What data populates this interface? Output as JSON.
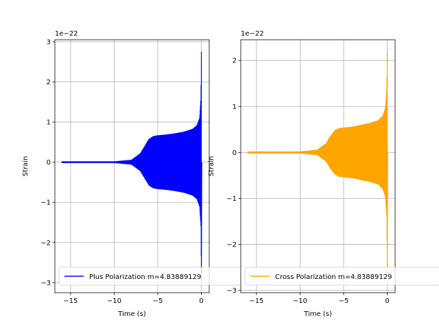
{
  "chart_data": [
    {
      "type": "line",
      "title": "",
      "xlabel": "Time (s)",
      "ylabel": "Strain",
      "offset_text": "1e−22",
      "xlim": [
        -16.8,
        0.9
      ],
      "ylim": [
        -3.25,
        3.05
      ],
      "xticks": [
        -15,
        -10,
        -5,
        0
      ],
      "xtick_labels": [
        "−15",
        "−10",
        "−5",
        "0"
      ],
      "yticks": [
        -3,
        -2,
        -1,
        0,
        1,
        2,
        3
      ],
      "ytick_labels": [
        "−3",
        "−2",
        "−1",
        "0",
        "1",
        "2",
        "3"
      ],
      "grid": true,
      "legend_position": "lower-left",
      "series": [
        {
          "name": "Plus Polarization m=4.83889129",
          "color": "#0000ff",
          "envelope": {
            "x": [
              -16,
              -10,
              -8,
              -7,
              -6.5,
              -6,
              -5.5,
              -5,
              -4,
              -3,
              -2,
              -1,
              -0.5,
              -0.2,
              -0.05,
              0
            ],
            "amplitude": [
              0.02,
              0.02,
              0.06,
              0.22,
              0.4,
              0.58,
              0.65,
              0.67,
              0.69,
              0.72,
              0.76,
              0.83,
              0.92,
              1.1,
              1.6,
              2.75
            ]
          },
          "peak_min": -2.95
        }
      ]
    },
    {
      "type": "line",
      "title": "",
      "xlabel": "Time (s)",
      "ylabel": "Strain",
      "offset_text": "1e−22",
      "xlim": [
        -16.8,
        0.9
      ],
      "ylim": [
        -3.05,
        2.45
      ],
      "xticks": [
        -15,
        -10,
        -5,
        0
      ],
      "xtick_labels": [
        "−15",
        "−10",
        "−5",
        "0"
      ],
      "yticks": [
        -3,
        -2,
        -1,
        0,
        1,
        2
      ],
      "ytick_labels": [
        "−3",
        "−2",
        "−1",
        "0",
        "1",
        "2"
      ],
      "grid": true,
      "legend_position": "lower-left",
      "series": [
        {
          "name": "Cross Polarization m=4.83889129",
          "color": "#ffa500",
          "envelope": {
            "x": [
              -16,
              -10,
              -8,
              -7,
              -6.5,
              -6,
              -5.5,
              -5,
              -4,
              -3,
              -2,
              -1,
              -0.5,
              -0.2,
              -0.05,
              0
            ],
            "amplitude": [
              0.02,
              0.02,
              0.06,
              0.2,
              0.36,
              0.48,
              0.53,
              0.54,
              0.56,
              0.6,
              0.64,
              0.7,
              0.8,
              0.98,
              1.4,
              2.2
            ]
          },
          "peak_min": -2.75
        }
      ]
    }
  ]
}
